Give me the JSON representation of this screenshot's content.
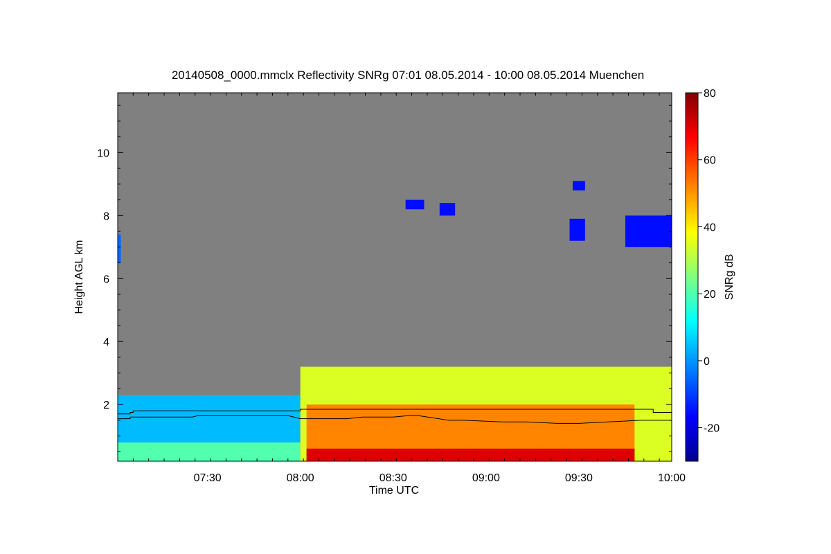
{
  "chart_data": {
    "type": "heatmap",
    "title": "20140508_0000.mmclx Reflectivity SNRg   07:01 08.05.2014 - 10:00 08.05.2014 Muenchen",
    "xlabel": "Time UTC",
    "ylabel": "Height AGL km",
    "colorbar_label": "SNRg dB",
    "x_range": [
      "07:01",
      "10:00"
    ],
    "xlim_minutes": [
      421,
      600
    ],
    "ylim_km": [
      0.2,
      11.9
    ],
    "x_ticks": [
      {
        "label": "07:30",
        "minutes": 450
      },
      {
        "label": "08:00",
        "minutes": 480
      },
      {
        "label": "08:30",
        "minutes": 510
      },
      {
        "label": "09:00",
        "minutes": 540
      },
      {
        "label": "09:30",
        "minutes": 570
      },
      {
        "label": "10:00",
        "minutes": 600
      }
    ],
    "y_ticks": [
      {
        "label": "2",
        "value": 2
      },
      {
        "label": "4",
        "value": 4
      },
      {
        "label": "6",
        "value": 6
      },
      {
        "label": "8",
        "value": 8
      },
      {
        "label": "10",
        "value": 10
      }
    ],
    "colorbar_range": [
      -30,
      80
    ],
    "colorbar_ticks": [
      {
        "label": "-20",
        "value": -20
      },
      {
        "label": "0",
        "value": 0
      },
      {
        "label": "20",
        "value": 20
      },
      {
        "label": "40",
        "value": 40
      },
      {
        "label": "60",
        "value": 60
      },
      {
        "label": "80",
        "value": 80
      }
    ],
    "background_color": "#808080",
    "colormap": [
      "#00008f",
      "#0000ff",
      "#0080ff",
      "#00ffff",
      "#80ff80",
      "#ffff00",
      "#ff8000",
      "#ff0000",
      "#800000"
    ],
    "echo_regions": [
      {
        "t0": 421,
        "t1": 480,
        "h0": 0.2,
        "h1": 0.8,
        "snr": 20
      },
      {
        "t0": 421,
        "t1": 480,
        "h0": 0.8,
        "h1": 2.3,
        "snr": 4
      },
      {
        "t0": 421,
        "t1": 422,
        "h0": 6.5,
        "h1": 7.4,
        "snr": -5
      },
      {
        "t0": 480,
        "t1": 600,
        "h0": 0.2,
        "h1": 3.2,
        "snr": 35
      },
      {
        "t0": 482,
        "t1": 588,
        "h0": 0.2,
        "h1": 2.0,
        "snr": 52
      },
      {
        "t0": 482,
        "t1": 588,
        "h0": 0.2,
        "h1": 0.6,
        "snr": 70
      },
      {
        "t0": 514,
        "t1": 520,
        "h0": 8.2,
        "h1": 8.5,
        "snr": -15
      },
      {
        "t0": 525,
        "t1": 530,
        "h0": 8.0,
        "h1": 8.4,
        "snr": -15
      },
      {
        "t0": 567,
        "t1": 572,
        "h0": 7.2,
        "h1": 7.9,
        "snr": -15
      },
      {
        "t0": 568,
        "t1": 572,
        "h0": 8.8,
        "h1": 9.1,
        "snr": -15
      },
      {
        "t0": 585,
        "t1": 600,
        "h0": 7.0,
        "h1": 8.0,
        "snr": -15
      }
    ],
    "boundary_line_1": {
      "x": [
        421,
        425,
        425,
        426,
        426,
        478,
        478,
        480,
        480,
        594,
        594,
        600
      ],
      "y": [
        1.7,
        1.7,
        1.75,
        1.75,
        1.8,
        1.8,
        1.8,
        1.8,
        1.85,
        1.85,
        1.75,
        1.75
      ]
    },
    "boundary_line_2": {
      "x": [
        421,
        425,
        425,
        445,
        447,
        455,
        473,
        476,
        480,
        485,
        489,
        495,
        500,
        504,
        510,
        515,
        518,
        528,
        533,
        545,
        553,
        563,
        570,
        590,
        600
      ],
      "y": [
        1.55,
        1.55,
        1.6,
        1.6,
        1.65,
        1.65,
        1.65,
        1.65,
        1.55,
        1.55,
        1.55,
        1.55,
        1.6,
        1.6,
        1.6,
        1.65,
        1.65,
        1.5,
        1.5,
        1.45,
        1.45,
        1.4,
        1.4,
        1.5,
        1.5
      ]
    }
  }
}
